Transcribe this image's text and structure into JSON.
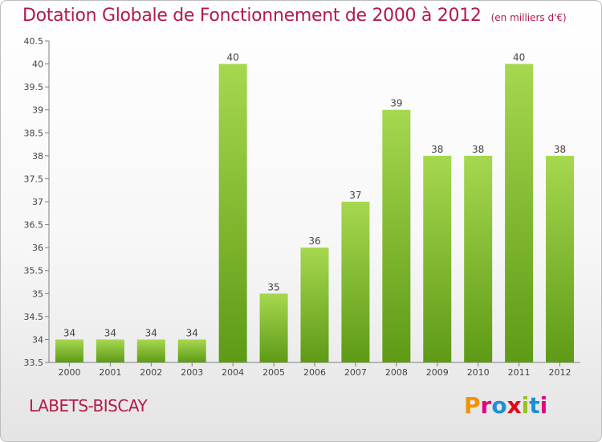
{
  "title": "Dotation Globale de Fonctionnement de 2000 à 2012",
  "unit_note": "(en milliers d'€)",
  "commune": "LABETS-BISCAY",
  "brand": {
    "letters": [
      "P",
      "r",
      "o",
      "x",
      "i",
      "t",
      "i"
    ],
    "colors": [
      "#f39200",
      "#e5007e",
      "#1d8fd6",
      "#e30613",
      "#95c11f",
      "#1d8fd6",
      "#e5007e"
    ]
  },
  "colors": {
    "title": "#b31a48",
    "bar_light": "#a6d84f",
    "bar_dark": "#5e9a16",
    "axis": "#808080"
  },
  "chart_data": {
    "type": "bar",
    "title": "Dotation Globale de Fonctionnement de 2000 à 2012",
    "subtitle": "(en milliers d'€)",
    "xlabel": "",
    "ylabel": "",
    "categories": [
      "2000",
      "2001",
      "2002",
      "2003",
      "2004",
      "2005",
      "2006",
      "2007",
      "2008",
      "2009",
      "2010",
      "2011",
      "2012"
    ],
    "values": [
      34,
      34,
      34,
      34,
      40,
      35,
      36,
      37,
      39,
      38,
      38,
      40,
      38
    ],
    "value_labels": [
      "34",
      "34",
      "34",
      "34",
      "40",
      "35",
      "36",
      "37",
      "39",
      "38",
      "38",
      "40",
      "38"
    ],
    "ylim": [
      33.5,
      40.5
    ],
    "yticks": [
      33.5,
      34,
      34.5,
      35,
      35.5,
      36,
      36.5,
      37,
      37.5,
      38,
      38.5,
      39,
      39.5,
      40,
      40.5
    ],
    "ytick_labels": [
      "33.5",
      "34",
      "34.5",
      "35",
      "35.5",
      "36",
      "36.5",
      "37",
      "37.5",
      "38",
      "38.5",
      "39",
      "39.5",
      "40",
      "40.5"
    ],
    "grid": false,
    "legend": "none"
  }
}
